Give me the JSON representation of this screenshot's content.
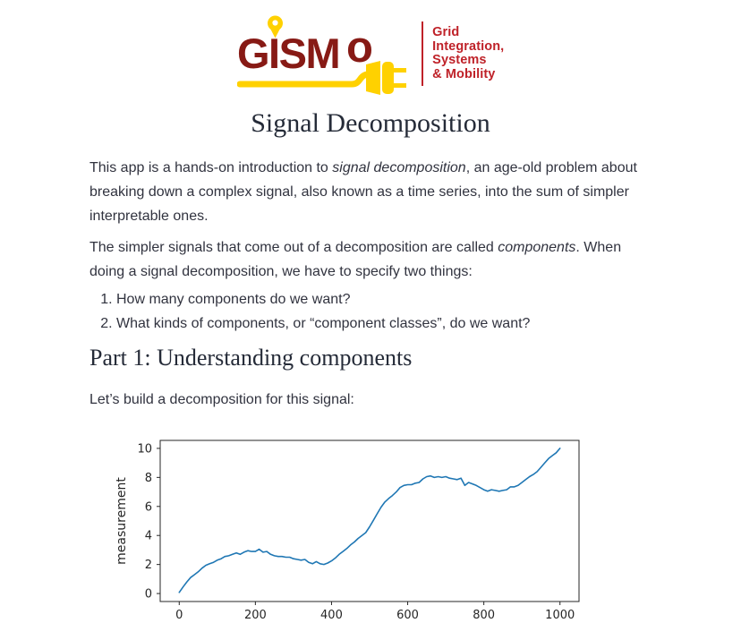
{
  "logo": {
    "wordmark": "GISM",
    "wordmark_suffix": "o",
    "full_name": "GISMo",
    "tagline": [
      "Grid",
      "Integration,",
      "Systems",
      "& Mobility"
    ],
    "colors": {
      "maroon": "#871a15",
      "red": "#bf2229",
      "yellow": "#ffd100"
    }
  },
  "content": {
    "title": "Signal Decomposition",
    "intro_rich": [
      {
        "t": "This app is a hands-on introduction to "
      },
      {
        "t": "signal decomposition",
        "i": true
      },
      {
        "t": ", an age-old problem about breaking down a complex signal, also known as a time series, into the sum of simpler interpretable ones."
      }
    ],
    "components_rich": [
      {
        "t": "The simpler signals that come out of a decomposition are called "
      },
      {
        "t": "components",
        "i": true
      },
      {
        "t": ". When doing a signal decomposition, we have to specify two things:"
      }
    ],
    "list_items": [
      "How many components do we want?",
      "What kinds of components, or “component classes”, do we want?"
    ],
    "part1_heading": "Part 1: Understanding components",
    "part1_intro": "Let’s build a decomposition for this signal:"
  },
  "chart_data": {
    "type": "line",
    "title": "",
    "xlabel": "",
    "ylabel": "measurement",
    "x_ticks": [
      0,
      200,
      400,
      600,
      800,
      1000
    ],
    "y_ticks": [
      0,
      2,
      4,
      6,
      8,
      10
    ],
    "xlim": [
      -50,
      1050
    ],
    "ylim": [
      -0.55,
      10.55
    ],
    "grid": false,
    "legend": false,
    "line_color": "#1f77b4",
    "axis_color": "#262626",
    "x_start": 0,
    "x_step": 10,
    "values": [
      0.08,
      0.45,
      0.8,
      1.1,
      1.3,
      1.5,
      1.75,
      1.95,
      2.05,
      2.15,
      2.3,
      2.4,
      2.55,
      2.6,
      2.7,
      2.8,
      2.7,
      2.85,
      2.95,
      2.9,
      2.9,
      3.05,
      2.85,
      2.9,
      2.7,
      2.6,
      2.55,
      2.55,
      2.5,
      2.5,
      2.4,
      2.35,
      2.3,
      2.35,
      2.15,
      2.05,
      2.2,
      2.05,
      2.0,
      2.1,
      2.25,
      2.45,
      2.7,
      2.9,
      3.1,
      3.35,
      3.55,
      3.8,
      4.0,
      4.2,
      4.6,
      5.05,
      5.5,
      5.95,
      6.3,
      6.55,
      6.75,
      7.0,
      7.3,
      7.45,
      7.5,
      7.5,
      7.6,
      7.65,
      7.9,
      8.05,
      8.1,
      8.0,
      8.05,
      8.0,
      8.05,
      7.95,
      7.9,
      7.85,
      7.95,
      7.45,
      7.65,
      7.55,
      7.45,
      7.3,
      7.15,
      7.05,
      7.15,
      7.1,
      7.05,
      7.1,
      7.15,
      7.35,
      7.35,
      7.45,
      7.65,
      7.85,
      8.05,
      8.2,
      8.4,
      8.7,
      9.0,
      9.3,
      9.5,
      9.7,
      10.0
    ]
  }
}
